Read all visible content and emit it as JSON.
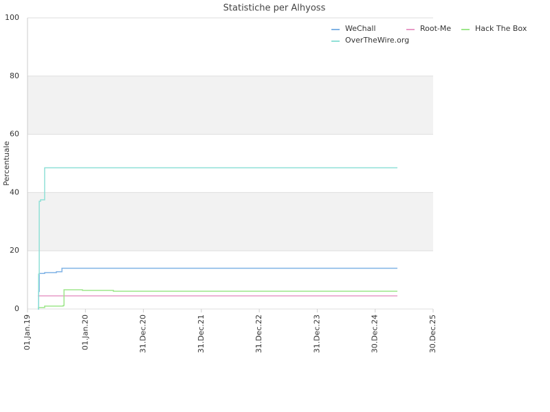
{
  "chart_data": {
    "type": "line",
    "title": "Statistiche per Alhyoss",
    "y_label": "Percentuale",
    "step": "post",
    "x": [
      "2019-03-07",
      "2019-03-12",
      "2019-03-16",
      "2019-03-24",
      "2019-04-19",
      "2019-05-20",
      "2019-07-02",
      "2019-08-06",
      "2019-08-14",
      "2019-08-19",
      "2019-12-13",
      "2020-06-25",
      "2025-05-19"
    ],
    "series": [
      {
        "name": "WeChall",
        "color": "#7fb2e5",
        "values": [
          0,
          6,
          12.2,
          12.2,
          12.5,
          12.5,
          12.8,
          14,
          14,
          14,
          14,
          14,
          14
        ]
      },
      {
        "name": "Root-Me",
        "color": "#e79ac6",
        "values": [
          4.5,
          4.5,
          4.5,
          4.5,
          4.5,
          4.5,
          4.5,
          4.5,
          4.5,
          4.5,
          4.5,
          4.5,
          4.5
        ]
      },
      {
        "name": "Hack The Box",
        "color": "#9de68a",
        "values": [
          0.5,
          0.5,
          0.5,
          0.5,
          1,
          1,
          1,
          1,
          1.2,
          6.6,
          6.4,
          6.1,
          6.1
        ]
      },
      {
        "name": "OverTheWire.org",
        "color": "#8fe0d6",
        "values": [
          0,
          12,
          37,
          37.5,
          48.5,
          48.5,
          48.5,
          48.5,
          48.5,
          48.5,
          48.5,
          48.5,
          48.5
        ]
      }
    ],
    "xlim": [
      "2019-01-01",
      "2025-12-30"
    ],
    "xticks": [
      {
        "value": "2019-01-01",
        "label": "01.Jan.19"
      },
      {
        "value": "2020-01-01",
        "label": "01.Jan.20"
      },
      {
        "value": "2020-12-31",
        "label": "31.Dec.20"
      },
      {
        "value": "2021-12-31",
        "label": "31.Dec.21"
      },
      {
        "value": "2022-12-31",
        "label": "31.Dec.22"
      },
      {
        "value": "2023-12-31",
        "label": "31.Dec.23"
      },
      {
        "value": "2024-12-30",
        "label": "30.Dec.24"
      },
      {
        "value": "2025-12-30",
        "label": "30.Dec.25"
      }
    ],
    "ylim": [
      0,
      100
    ],
    "yticks": [
      0,
      20,
      40,
      60,
      80,
      100
    ],
    "grid": true,
    "legend": "top-right"
  }
}
